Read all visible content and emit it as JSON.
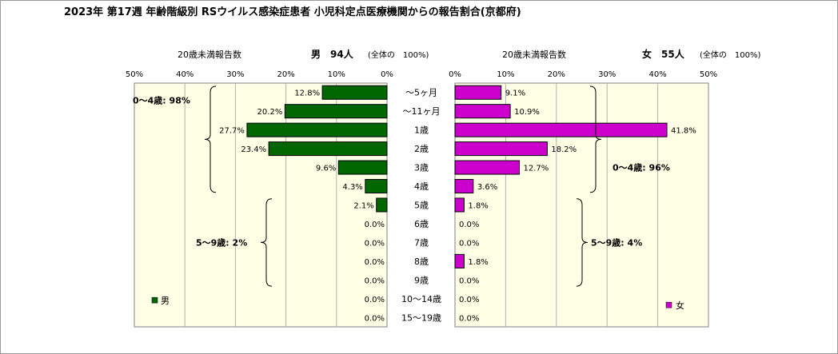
{
  "chart_data": {
    "type": "bar",
    "title": "2023年 第17週 年齢階級別 RSウイルス感染症患者 小児科定点医療機関からの報告割合(京都府)",
    "categories": [
      "～5ヶ月",
      "～11ヶ月",
      "1歳",
      "2歳",
      "3歳",
      "4歳",
      "5歳",
      "6歳",
      "7歳",
      "8歳",
      "9歳",
      "10～14歳",
      "15～19歳"
    ],
    "axis_ticks": [
      "50%",
      "40%",
      "30%",
      "20%",
      "10%",
      "0%"
    ],
    "axis_ticks_right": [
      "0%",
      "10%",
      "20%",
      "30%",
      "40%",
      "50%"
    ],
    "xlim": [
      0,
      50
    ],
    "grid": true,
    "background": "#FFFFE6",
    "series": [
      {
        "name": "男",
        "side": "left",
        "color": "#006600",
        "subtitle": "20歳未満報告数",
        "header": "男　94人",
        "note": "(全体の　100%)",
        "values": [
          12.8,
          20.2,
          27.7,
          23.4,
          9.6,
          4.3,
          2.1,
          0.0,
          0.0,
          0.0,
          0.0,
          0.0,
          0.0
        ],
        "labels": [
          "12.8%",
          "20.2%",
          "27.7%",
          "23.4%",
          "9.6%",
          "4.3%",
          "2.1%",
          "0.0%",
          "0.0%",
          "0.0%",
          "0.0%",
          "0.0%",
          "0.0%"
        ],
        "group_labels": [
          "0～4歳: 98%",
          "5～9歳: 2%"
        ]
      },
      {
        "name": "女",
        "side": "right",
        "color": "#CC00CC",
        "subtitle": "20歳未満報告数",
        "header": "女　55人",
        "note": "(全体の　100%)",
        "values": [
          9.1,
          10.9,
          41.8,
          18.2,
          12.7,
          3.6,
          1.8,
          0.0,
          0.0,
          1.8,
          0.0,
          0.0,
          0.0
        ],
        "labels": [
          "9.1%",
          "10.9%",
          "41.8%",
          "18.2%",
          "12.7%",
          "3.6%",
          "1.8%",
          "0.0%",
          "0.0%",
          "1.8%",
          "0.0%",
          "0.0%",
          "0.0%"
        ],
        "group_labels": [
          "0～4歳: 96%",
          "5～9歳: 4%"
        ]
      }
    ]
  }
}
